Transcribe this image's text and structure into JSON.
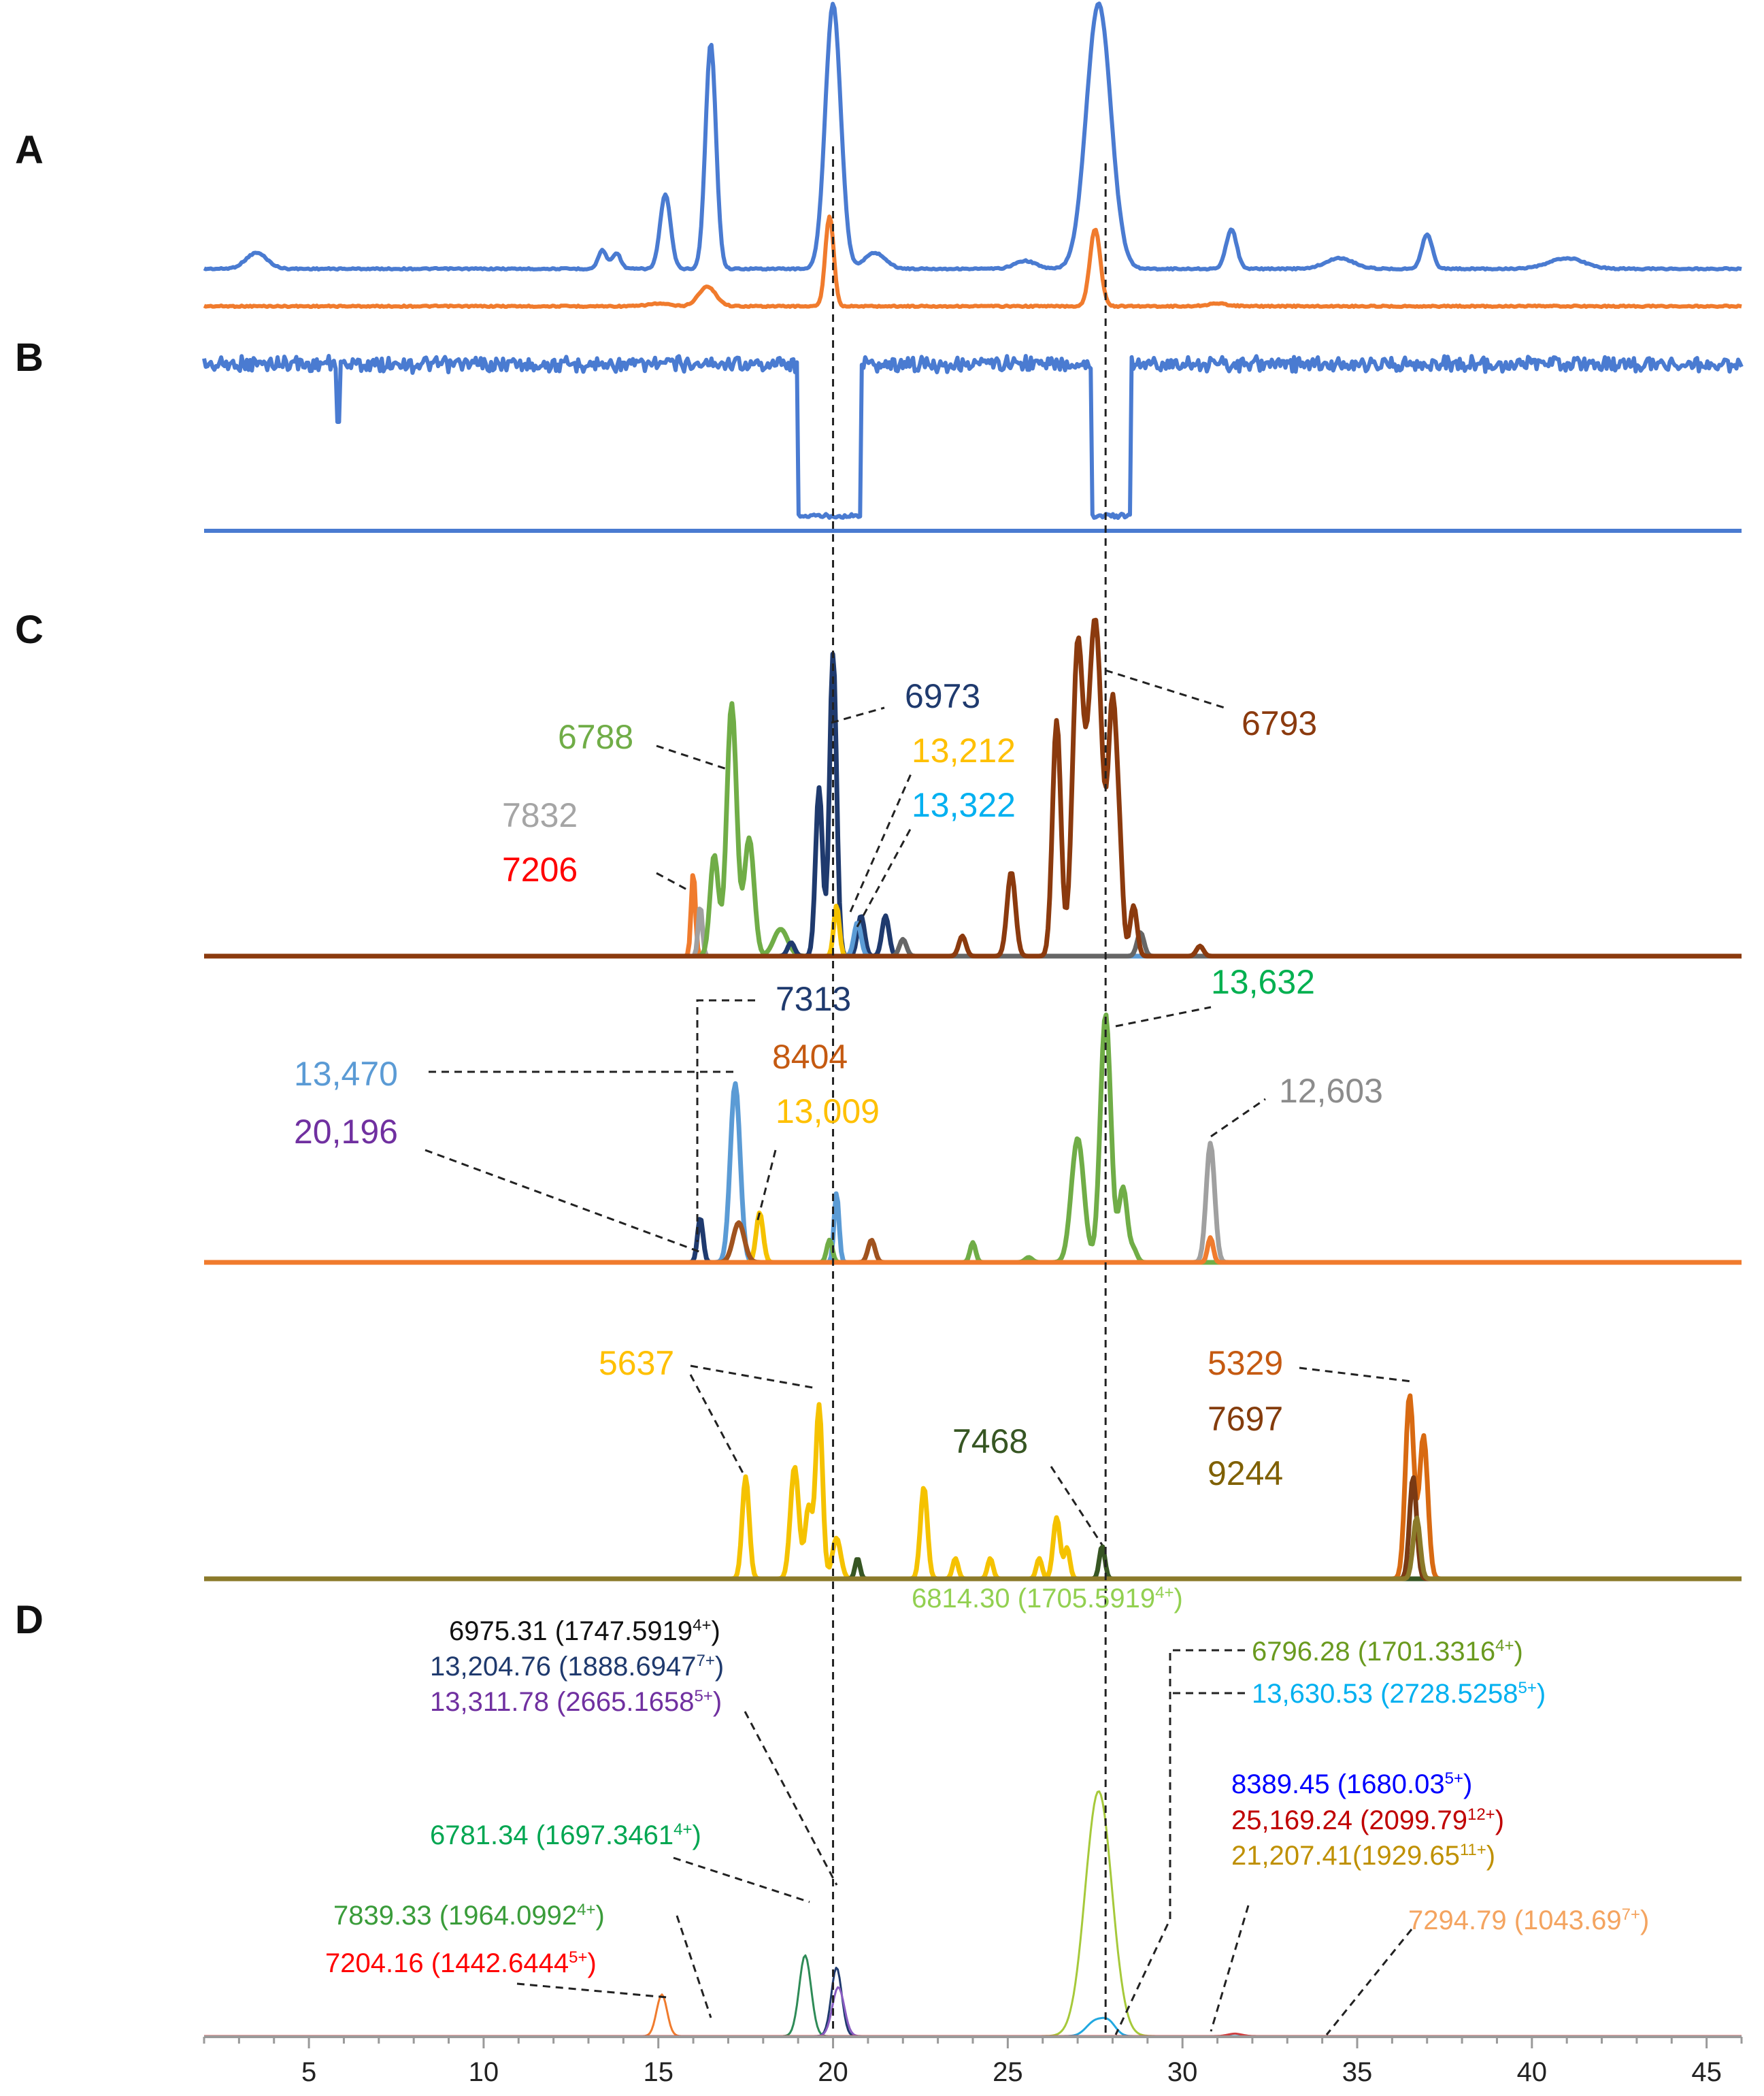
{
  "chart_data": {
    "type": "line",
    "x_axis": {
      "range": [
        2,
        46
      ],
      "ticks": [
        5,
        10,
        15,
        20,
        25,
        30,
        35,
        40,
        45
      ],
      "tick_labels": [
        "5",
        "10",
        "15",
        "20",
        "25",
        "30",
        "35",
        "40",
        "45"
      ]
    },
    "reference_lines_x": [
      20.0,
      27.8
    ],
    "panel_labels": {
      "A": "A",
      "B": "B",
      "C": "C",
      "D": "D"
    },
    "panels": [
      {
        "id": "A",
        "traces": [
          {
            "color": "#4a7bd1",
            "baseline": 0.03,
            "peaks": [
              [
                3.5,
                0.06,
                0.3
              ],
              [
                13.4,
                0.07,
                0.12
              ],
              [
                13.8,
                0.06,
                0.12
              ],
              [
                15.2,
                0.28,
                0.15
              ],
              [
                16.5,
                0.85,
                0.15
              ],
              [
                20.0,
                1.0,
                0.22
              ],
              [
                21.2,
                0.06,
                0.3
              ],
              [
                25.5,
                0.03,
                0.3
              ],
              [
                27.6,
                1.0,
                0.35
              ],
              [
                31.4,
                0.15,
                0.15
              ],
              [
                34.5,
                0.04,
                0.4
              ],
              [
                37.0,
                0.13,
                0.15
              ],
              [
                41.0,
                0.04,
                0.5
              ]
            ]
          },
          {
            "color": "#f07b2d",
            "baseline": 0.0,
            "peaks": [
              [
                16.4,
                0.15,
                0.25
              ],
              [
                19.9,
                0.7,
                0.12
              ],
              [
                27.5,
                0.6,
                0.15
              ],
              [
                15.0,
                0.02,
                0.3
              ],
              [
                31.0,
                0.02,
                0.3
              ]
            ]
          }
        ]
      },
      {
        "id": "B",
        "traces": [
          {
            "color": "#4a7bd1",
            "type": "tic_dips",
            "dips": [
              [
                5.8,
                5.9
              ],
              [
                19.0,
                20.8
              ],
              [
                27.4,
                28.5
              ]
            ]
          },
          {
            "color": "#4a7bd1",
            "type": "flat",
            "level": 0
          }
        ]
      },
      {
        "id": "C1",
        "traces": [
          {
            "color": "#f07b2d",
            "peaks": [
              [
                16.0,
                0.25,
                0.06
              ]
            ]
          },
          {
            "color": "#a0a0a0",
            "peaks": [
              [
                16.2,
                0.15,
                0.06
              ]
            ]
          },
          {
            "color": "#70ad47",
            "peaks": [
              [
                16.6,
                0.3,
                0.12
              ],
              [
                17.1,
                0.75,
                0.14
              ],
              [
                17.6,
                0.35,
                0.14
              ],
              [
                18.5,
                0.08,
                0.2
              ]
            ]
          },
          {
            "color": "#1f3a6e",
            "peaks": [
              [
                19.6,
                0.5,
                0.1
              ],
              [
                20.0,
                0.9,
                0.1
              ],
              [
                20.8,
                0.12,
                0.1
              ],
              [
                21.5,
                0.12,
                0.1
              ],
              [
                18.8,
                0.04,
                0.1
              ]
            ]
          },
          {
            "color": "#f5c200",
            "peaks": [
              [
                20.1,
                0.15,
                0.08
              ]
            ]
          },
          {
            "color": "#5b9bd5",
            "peaks": [
              [
                20.7,
                0.1,
                0.1
              ]
            ]
          },
          {
            "color": "#666666",
            "peaks": [
              [
                22.0,
                0.05,
                0.1
              ],
              [
                28.8,
                0.07,
                0.1
              ]
            ]
          },
          {
            "color": "#8b3a0e",
            "peaks": [
              [
                23.7,
                0.06,
                0.1
              ],
              [
                25.1,
                0.25,
                0.12
              ],
              [
                26.4,
                0.7,
                0.12
              ],
              [
                27.0,
                0.9,
                0.15
              ],
              [
                27.5,
                1.0,
                0.2
              ],
              [
                28.0,
                0.7,
                0.12
              ],
              [
                28.2,
                0.25,
                0.1
              ],
              [
                28.6,
                0.15,
                0.1
              ],
              [
                30.5,
                0.03,
                0.1
              ]
            ]
          }
        ]
      },
      {
        "id": "C2",
        "traces": [
          {
            "color": "#1f3a6e",
            "peaks": [
              [
                16.2,
                0.18,
                0.08
              ]
            ]
          },
          {
            "color": "#5b9bd5",
            "peaks": [
              [
                17.2,
                0.72,
                0.14
              ],
              [
                20.1,
                0.28,
                0.07
              ]
            ]
          },
          {
            "color": "#f5c200",
            "peaks": [
              [
                17.9,
                0.2,
                0.1
              ]
            ]
          },
          {
            "color": "#a0531f",
            "peaks": [
              [
                17.3,
                0.16,
                0.16
              ],
              [
                21.1,
                0.09,
                0.1
              ]
            ]
          },
          {
            "color": "#70ad47",
            "peaks": [
              [
                19.9,
                0.09,
                0.08
              ],
              [
                24.0,
                0.08,
                0.08
              ],
              [
                25.6,
                0.02,
                0.1
              ],
              [
                27.0,
                0.5,
                0.18
              ],
              [
                27.8,
                1.0,
                0.15
              ],
              [
                28.3,
                0.3,
                0.12
              ],
              [
                28.6,
                0.05,
                0.1
              ]
            ]
          },
          {
            "color": "#a0a0a0",
            "peaks": [
              [
                30.8,
                0.48,
                0.12
              ]
            ]
          },
          {
            "color": "#f07b2d",
            "peaks": [
              [
                30.8,
                0.1,
                0.08
              ]
            ]
          }
        ]
      },
      {
        "id": "C3",
        "traces": [
          {
            "color": "#f5c200",
            "peaks": [
              [
                17.5,
                0.5,
                0.1
              ],
              [
                18.9,
                0.55,
                0.12
              ],
              [
                19.3,
                0.35,
                0.1
              ],
              [
                19.6,
                0.85,
                0.1
              ],
              [
                20.1,
                0.2,
                0.12
              ],
              [
                22.6,
                0.45,
                0.1
              ],
              [
                23.5,
                0.1,
                0.08
              ],
              [
                24.5,
                0.1,
                0.08
              ],
              [
                25.9,
                0.1,
                0.08
              ],
              [
                26.4,
                0.3,
                0.1
              ],
              [
                26.7,
                0.15,
                0.08
              ]
            ]
          },
          {
            "color": "#375623",
            "peaks": [
              [
                20.7,
                0.1,
                0.07
              ],
              [
                27.7,
                0.16,
                0.08
              ]
            ]
          },
          {
            "color": "#d86a12",
            "peaks": [
              [
                36.5,
                0.9,
                0.12
              ],
              [
                36.9,
                0.7,
                0.12
              ]
            ]
          },
          {
            "color": "#7a3a14",
            "peaks": [
              [
                36.6,
                0.5,
                0.1
              ]
            ]
          },
          {
            "color": "#8b7a2a",
            "peaks": [
              [
                36.7,
                0.3,
                0.1
              ]
            ]
          }
        ]
      },
      {
        "id": "D",
        "traces": [
          {
            "color": "#f07b2d",
            "peaks": [
              [
                15.1,
                0.17,
                0.15
              ]
            ]
          },
          {
            "color": "#2e8b57",
            "peaks": [
              [
                19.2,
                0.33,
                0.17
              ]
            ]
          },
          {
            "color": "#1f3a6e",
            "peaks": [
              [
                20.1,
                0.28,
                0.15
              ]
            ]
          },
          {
            "color": "#8a5cc2",
            "peaks": [
              [
                20.15,
                0.2,
                0.17
              ]
            ]
          },
          {
            "color": "#a6c93a",
            "peaks": [
              [
                27.6,
                1.0,
                0.38
              ]
            ]
          },
          {
            "color": "#22a8e0",
            "peaks": [
              [
                27.5,
                0.06,
                0.25
              ],
              [
                27.9,
                0.05,
                0.2
              ]
            ]
          },
          {
            "color": "#d04040",
            "peaks": [
              [
                31.5,
                0.01,
                0.2
              ]
            ]
          }
        ]
      }
    ],
    "annotations": {
      "C1": [
        "6788",
        "7832",
        "7206",
        "6973",
        "13,212",
        "13,322",
        "6793"
      ],
      "C2": [
        "7313",
        "8404",
        "13,009",
        "13,470",
        "20,196",
        "13,632",
        "12,603"
      ],
      "C3": [
        "5637",
        "7468",
        "5329",
        "7697",
        "9244"
      ],
      "D": [
        "6975.31 (1747.5919",
        "13,204.76 (1888.6947",
        "13,311.78 (2665.1658",
        "6781.34 (1697.3461",
        "7839.33 (1964.0992",
        "7204.16 (1442.6444",
        "6814.30 (1705.5919",
        "6796.28 (1701.3316",
        "13,630.53 (2728.5258",
        "8389.45 (1680.03",
        "25,169.24 (2099.79",
        "21,207.41(1929.65",
        "7294.79 (1043.69"
      ],
      "D_charges": [
        "4+",
        "7+",
        "5+",
        "4+",
        "4+",
        "5+",
        "4+",
        "4+",
        "5+",
        "5+",
        "12+",
        "11+",
        "7+"
      ],
      "D_close": ")"
    },
    "colors": {
      "c_6788": "#70ad47",
      "c_7832": "#a5a5a5",
      "c_7206": "#ff0000",
      "c_6973": "#1f3a6e",
      "c_13212": "#ffc000",
      "c_13322": "#00b0f0",
      "c_6793": "#8b3a0e",
      "c_7313": "#1f3a6e",
      "c_8404": "#c55a11",
      "c_13009": "#ffc000",
      "c_13470": "#5b9bd5",
      "c_20196": "#7030a0",
      "c_13632": "#00b050",
      "c_12603": "#8c8c8c",
      "c_5637": "#ffc000",
      "c_7468": "#375623",
      "c_5329": "#c55a11",
      "c_7697": "#843c0c",
      "c_9244": "#7f6000",
      "d_black": "#111111",
      "d_navy": "#1f3a6e",
      "d_purple": "#7030a0",
      "d_green": "#00a651",
      "d_green2": "#3a9c3a",
      "d_red": "#ff0000",
      "d_lime": "#92d050",
      "d_olive": "#6a9a1f",
      "d_cyan": "#00b0f0",
      "d_blue": "#0000ff",
      "d_darkred": "#c00000",
      "d_gold": "#bf9000",
      "d_orange": "#f4a460"
    }
  }
}
